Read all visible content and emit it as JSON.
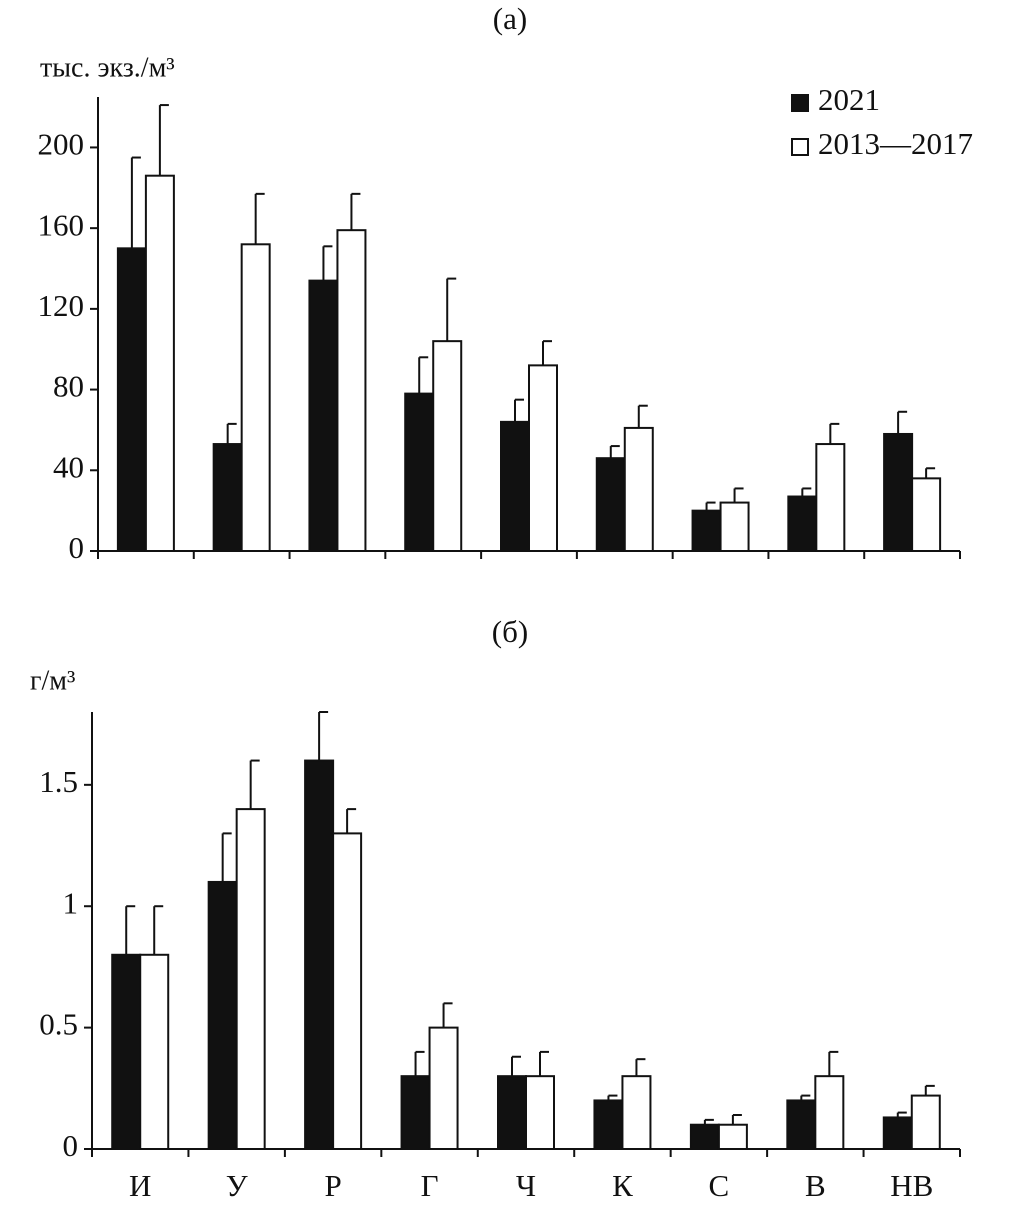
{
  "chart_data": [
    {
      "type": "bar",
      "title": "(а)",
      "y_label": "тыс. экз./м³",
      "categories": [
        null,
        null,
        null,
        null,
        null,
        null,
        null,
        null,
        null
      ],
      "series": [
        {
          "name": "2021",
          "color": "#111111",
          "values": [
            150,
            53,
            134,
            78,
            64,
            46,
            20,
            27,
            58
          ],
          "errors": [
            45,
            10,
            17,
            18,
            11,
            6,
            4,
            4,
            11
          ]
        },
        {
          "name": "2013—2017",
          "color": "#ffffff",
          "values": [
            186,
            152,
            159,
            104,
            92,
            61,
            24,
            53,
            36
          ],
          "errors": [
            35,
            25,
            18,
            31,
            12,
            11,
            7,
            10,
            5
          ]
        }
      ],
      "ylim": [
        0,
        225
      ],
      "yticks": [
        0,
        40,
        80,
        120,
        160,
        200
      ],
      "legend": "upper right"
    },
    {
      "type": "bar",
      "title": "(б)",
      "y_label": "г/м³",
      "categories": [
        "И",
        "У",
        "Р",
        "Г",
        "Ч",
        "К",
        "С",
        "В",
        "НВ"
      ],
      "series": [
        {
          "color": "#111111",
          "values": [
            0.8,
            1.1,
            1.6,
            0.3,
            0.3,
            0.2,
            0.1,
            0.2,
            0.13
          ],
          "errors": [
            0.2,
            0.2,
            0.2,
            0.1,
            0.08,
            0.02,
            0.02,
            0.02,
            0.02
          ]
        },
        {
          "color": "#ffffff",
          "values": [
            0.8,
            1.4,
            1.3,
            0.5,
            0.3,
            0.3,
            0.1,
            0.3,
            0.22
          ],
          "errors": [
            0.2,
            0.2,
            0.1,
            0.1,
            0.1,
            0.07,
            0.04,
            0.1,
            0.04
          ]
        }
      ],
      "ylim": [
        0,
        1.8
      ],
      "yticks": [
        0,
        0.5,
        1,
        1.5
      ]
    }
  ]
}
